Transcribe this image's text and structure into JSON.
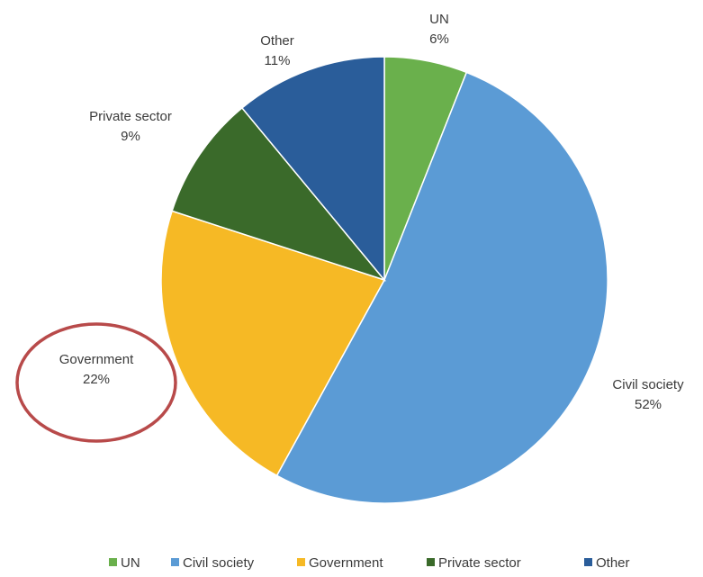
{
  "chart_data": {
    "type": "pie",
    "categories": [
      "UN",
      "Civil society",
      "Government",
      "Private sector",
      "Other"
    ],
    "values": [
      6,
      52,
      22,
      9,
      11
    ],
    "value_labels": [
      "6%",
      "52%",
      "22%",
      "9%",
      "11%"
    ],
    "colors": [
      "#6ab04c",
      "#5b9bd5",
      "#f6b925",
      "#3a6a2a",
      "#2a5d9a"
    ],
    "start_angle": "12 o'clock",
    "direction": "clockwise",
    "legend": {
      "position": "bottom",
      "items": [
        "UN",
        "Civil society",
        "Government",
        "Private sector",
        "Other"
      ]
    },
    "annotation": {
      "type": "circle",
      "target": "Government",
      "color": "#b84a4a"
    }
  }
}
